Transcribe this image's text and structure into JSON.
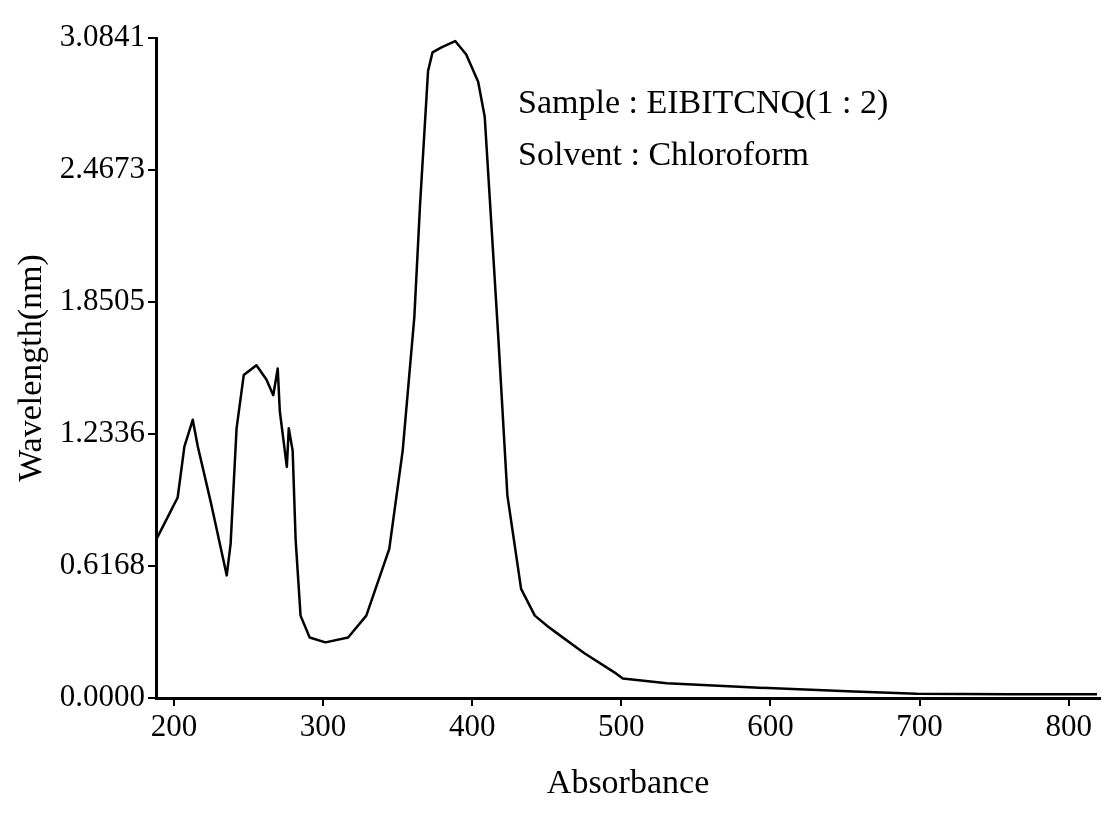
{
  "chart_data": {
    "type": "line",
    "xlabel": "Absorbance",
    "ylabel": "Wavelength(nm)",
    "annotations": [
      "Sample : EIBITCNQ(1 : 2)",
      "Solvent : Chloroform"
    ],
    "x": [
      188.7,
      202.5,
      207,
      212.6,
      216,
      225,
      231.5,
      235.4,
      238,
      242,
      246.8,
      255.3,
      262,
      266.6,
      269.6,
      271,
      275.7,
      277,
      279.6,
      281.6,
      284.9,
      291,
      301.6,
      316.8,
      329,
      344.4,
      353.4,
      361.2,
      365,
      370.4,
      373.4,
      379.4,
      388.6,
      396,
      404,
      408.4,
      413,
      417.6,
      423.6,
      432.8,
      442,
      451,
      457,
      475,
      496.4,
      501,
      530.5,
      589,
      656,
      698,
      760,
      819
    ],
    "series": [
      {
        "color": "#000000",
        "values": [
          0.748,
          0.937,
          1.175,
          1.3,
          1.175,
          0.906,
          0.697,
          0.573,
          0.72,
          1.26,
          1.509,
          1.555,
          1.488,
          1.415,
          1.54,
          1.34,
          1.08,
          1.26,
          1.156,
          0.74,
          0.385,
          0.283,
          0.26,
          0.283,
          0.385,
          0.697,
          1.156,
          1.78,
          2.3,
          2.93,
          3.017,
          3.04,
          3.07,
          3.007,
          2.88,
          2.716,
          2.197,
          1.675,
          0.947,
          0.51,
          0.385,
          0.333,
          0.302,
          0.21,
          0.115,
          0.091,
          0.069,
          0.049,
          0.03,
          0.02,
          0.017,
          0.017
        ]
      }
    ],
    "xlim": [
      188,
      821
    ],
    "xticks": [
      200,
      300,
      400,
      500,
      600,
      700,
      800
    ],
    "ylim": [
      0,
      3.0841
    ],
    "yticks": [
      {
        "value": 0,
        "label": "0.0000"
      },
      0.6168,
      1.2336,
      1.8505,
      2.4673,
      3.0841
    ],
    "grid": false,
    "legend": false,
    "marker": "none",
    "line_style": "solid"
  }
}
